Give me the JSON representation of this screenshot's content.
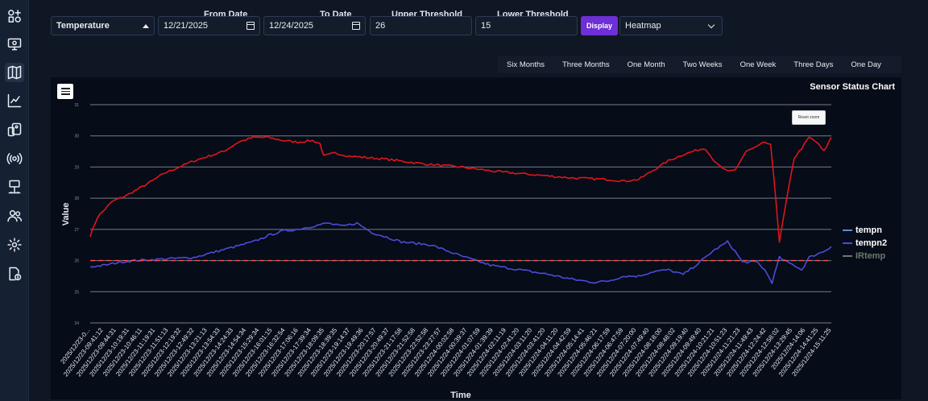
{
  "controls": {
    "sensor_type": "Temperature",
    "from_date_label": "From Date",
    "from_date": "12/21/2025",
    "to_date_label": "To Date",
    "to_date": "12/24/2025",
    "upper_threshold_label": "Upper Threshold",
    "upper_threshold": "26",
    "lower_threshold_label": "Lower Threshold",
    "lower_threshold": "15",
    "display_label": "Display",
    "view_mode": "Heatmap"
  },
  "ranges": [
    "Six Months",
    "Three Months",
    "One Month",
    "Two Weeks",
    "One Week",
    "Three Days",
    "One Day"
  ],
  "chart": {
    "title": "Sensor Status Chart",
    "reset_zoom": "Reset zoom",
    "menu_icon": "hamburger-menu-icon"
  },
  "chart_data": {
    "type": "line",
    "title": "Sensor Status Chart",
    "xlabel": "Time",
    "ylabel": "Value",
    "ylim": [
      24,
      31
    ],
    "yticks": [
      24,
      25,
      26,
      27,
      28,
      29,
      30,
      31
    ],
    "grid": true,
    "legend_position": "right",
    "threshold_line": {
      "value": 26,
      "color": "#ff4d4d",
      "style": "dashed"
    },
    "x_tick_labels": [
      "2025/12/23-0...",
      "2025/12/23-09:41:12",
      "2025/12/23-09:44:31",
      "2025/12/23-10:19:31",
      "2025/12/23-10:46:11",
      "2025/12/23-11:19:31",
      "2025/12/23-11:51:13",
      "2025/12/23-12:19:32",
      "2025/12/23-12:49:32",
      "2025/12/23-13:21:13",
      "2025/12/23-13:54:33",
      "2025/12/23-14:24:33",
      "2025/12/23-14:54:34",
      "2025/12/23-15:29:34",
      "2025/12/23-16:01:15",
      "2025/12/23-16:32:54",
      "2025/12/23-17:06:16",
      "2025/12/23-17:39:34",
      "2025/12/23-18:09:35",
      "2025/12/23-18:39:35",
      "2025/12/23-19:14:37",
      "2025/12/23-19:49:36",
      "2025/12/23-20:17:57",
      "2025/12/23-20:49:37",
      "2025/12/23-21:17:58",
      "2025/12/23-21:52:58",
      "2025/12/23-22:52:58",
      "2025/12/23-23:27:57",
      "2025/12/24-00:02:58",
      "2025/12/24-00:39:37",
      "2025/12/24-01:07:59",
      "2025/12/24-01:39:39",
      "2025/12/24-02:11:19",
      "2025/12/24-02:41:20",
      "2025/12/24-03:11:20",
      "2025/12/24-03:41:20",
      "2025/12/24-04:11:20",
      "2025/12/24-04:42:59",
      "2025/12/24-05:14:41",
      "2025/12/24-05:46:21",
      "2025/12/24-06:17:59",
      "2025/12/24-06:47:59",
      "2025/12/24-07:20:00",
      "2025/12/24-07:49:40",
      "2025/12/24-08:18:00",
      "2025/12/24-08:48:02",
      "2025/12/24-09:19:40",
      "2025/12/24-09:49:40",
      "2025/12/24-10:21:21",
      "2025/12/24-10:51:23",
      "2025/12/24-11:21:23",
      "2025/12/24-11:49:43",
      "2025/12/24-12:24:42",
      "2025/12/24-12:58:02",
      "2025/12/24-13:29:45",
      "2025/12/24-14:06",
      "2025/12/24-14:41:25",
      "2025/12/24-15:11:25"
    ],
    "series": [
      {
        "name": "tempn",
        "color": "#e0151a",
        "points": [
          [
            0,
            26.8
          ],
          [
            0.01,
            27.4
          ],
          [
            0.03,
            27.9
          ],
          [
            0.05,
            28.1
          ],
          [
            0.08,
            28.5
          ],
          [
            0.1,
            28.8
          ],
          [
            0.14,
            29.2
          ],
          [
            0.18,
            29.5
          ],
          [
            0.2,
            29.8
          ],
          [
            0.22,
            29.95
          ],
          [
            0.24,
            29.95
          ],
          [
            0.26,
            29.85
          ],
          [
            0.28,
            29.8
          ],
          [
            0.3,
            29.85
          ],
          [
            0.31,
            29.75
          ],
          [
            0.315,
            29.35
          ],
          [
            0.33,
            29.45
          ],
          [
            0.35,
            29.35
          ],
          [
            0.4,
            29.25
          ],
          [
            0.45,
            29.1
          ],
          [
            0.5,
            29.0
          ],
          [
            0.55,
            28.85
          ],
          [
            0.6,
            28.75
          ],
          [
            0.65,
            28.65
          ],
          [
            0.7,
            28.6
          ],
          [
            0.72,
            28.55
          ],
          [
            0.74,
            28.6
          ],
          [
            0.76,
            28.9
          ],
          [
            0.78,
            29.2
          ],
          [
            0.8,
            29.4
          ],
          [
            0.82,
            29.55
          ],
          [
            0.83,
            29.6
          ],
          [
            0.845,
            29.1
          ],
          [
            0.86,
            28.85
          ],
          [
            0.87,
            28.9
          ],
          [
            0.885,
            29.5
          ],
          [
            0.9,
            29.65
          ],
          [
            0.91,
            29.8
          ],
          [
            0.918,
            29.7
          ],
          [
            0.925,
            28.0
          ],
          [
            0.93,
            26.6
          ],
          [
            0.94,
            28.0
          ],
          [
            0.95,
            29.3
          ],
          [
            0.96,
            29.6
          ],
          [
            0.97,
            29.95
          ],
          [
            0.98,
            29.8
          ],
          [
            0.99,
            29.5
          ],
          [
            1.0,
            29.95
          ]
        ]
      },
      {
        "name": "tempn2",
        "color": "#4a4cd6",
        "points": [
          [
            0,
            25.8
          ],
          [
            0.02,
            25.85
          ],
          [
            0.04,
            25.95
          ],
          [
            0.06,
            26.0
          ],
          [
            0.1,
            26.05
          ],
          [
            0.14,
            26.1
          ],
          [
            0.18,
            26.35
          ],
          [
            0.22,
            26.6
          ],
          [
            0.24,
            26.8
          ],
          [
            0.26,
            26.95
          ],
          [
            0.28,
            27.0
          ],
          [
            0.3,
            27.1
          ],
          [
            0.32,
            27.2
          ],
          [
            0.34,
            27.1
          ],
          [
            0.36,
            27.2
          ],
          [
            0.38,
            26.9
          ],
          [
            0.4,
            26.75
          ],
          [
            0.42,
            26.6
          ],
          [
            0.46,
            26.5
          ],
          [
            0.5,
            26.15
          ],
          [
            0.52,
            26.0
          ],
          [
            0.54,
            25.85
          ],
          [
            0.58,
            25.7
          ],
          [
            0.62,
            25.55
          ],
          [
            0.65,
            25.4
          ],
          [
            0.68,
            25.3
          ],
          [
            0.7,
            25.35
          ],
          [
            0.72,
            25.5
          ],
          [
            0.74,
            25.5
          ],
          [
            0.76,
            25.65
          ],
          [
            0.78,
            25.7
          ],
          [
            0.8,
            25.55
          ],
          [
            0.82,
            25.9
          ],
          [
            0.84,
            26.3
          ],
          [
            0.86,
            26.6
          ],
          [
            0.87,
            26.3
          ],
          [
            0.88,
            25.95
          ],
          [
            0.9,
            25.95
          ],
          [
            0.91,
            25.7
          ],
          [
            0.92,
            25.3
          ],
          [
            0.93,
            26.1
          ],
          [
            0.94,
            25.95
          ],
          [
            0.95,
            25.85
          ],
          [
            0.96,
            25.7
          ],
          [
            0.97,
            26.1
          ],
          [
            0.99,
            26.3
          ],
          [
            1.0,
            26.45
          ]
        ]
      },
      {
        "name": "IRtemp",
        "color": "#6b7a6b",
        "points": []
      }
    ]
  }
}
